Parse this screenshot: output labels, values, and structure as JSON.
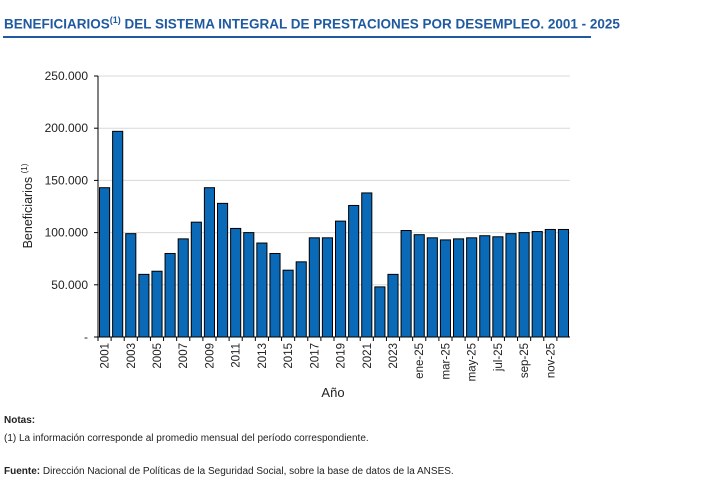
{
  "title": {
    "text": "BENEFICIARIOS",
    "sup": "(1)",
    "rest": " DEL SISTEMA INTEGRAL DE PRESTACIONES POR DESEMPLEO. 2001 - 2025"
  },
  "chart_data": {
    "type": "bar",
    "title": "BENEFICIARIOS(1) DEL SISTEMA INTEGRAL DE PRESTACIONES POR DESEMPLEO. 2001 - 2025",
    "xlabel": "Año",
    "ylabel": "Beneficiarios",
    "ylabel_sup": "(1)",
    "ylim": [
      0,
      250000
    ],
    "yticks": [
      0,
      50000,
      100000,
      150000,
      200000,
      250000
    ],
    "ytick_labels": [
      "-",
      "50.000",
      "100.000",
      "150.000",
      "200.000",
      "250.000"
    ],
    "grid": true,
    "legend": "none",
    "bar_color": "#0a6ab8",
    "categories": [
      "2001",
      "2002",
      "2003",
      "2004",
      "2005",
      "2006",
      "2007",
      "2008",
      "2009",
      "2010",
      "2011",
      "2012",
      "2013",
      "2014",
      "2015",
      "2016",
      "2017",
      "2018",
      "2019",
      "2020",
      "2021",
      "2022",
      "2023",
      "2024",
      "ene-25",
      "feb-25",
      "mar-25",
      "abr-25",
      "may-25",
      "jun-25",
      "jul-25",
      "ago-25",
      "sep-25",
      "oct-25",
      "nov-25",
      "dic-25"
    ],
    "shown_tick_labels": [
      "2001",
      "2003",
      "2005",
      "2007",
      "2009",
      "2011",
      "2013",
      "2015",
      "2017",
      "2019",
      "2021",
      "2023",
      "ene-25",
      "mar-25",
      "may-25",
      "jul-25",
      "sep-25",
      "nov-25"
    ],
    "values": [
      143000,
      197000,
      99000,
      60000,
      63000,
      80000,
      94000,
      110000,
      143000,
      128000,
      104000,
      100000,
      90000,
      80000,
      64000,
      72000,
      95000,
      95000,
      111000,
      126000,
      138000,
      48000,
      60000,
      102000,
      98000,
      95000,
      93000,
      94000,
      95000,
      97000,
      96000,
      99000,
      100000,
      101000,
      103000,
      103000
    ]
  },
  "notes": {
    "heading": "Notas:",
    "note1": "(1) La información corresponde al promedio mensual del período correspondiente.",
    "source_label": "Fuente:",
    "source_text": " Dirección Nacional de Políticas de la Seguridad Social, sobre la base de datos de la ANSES."
  }
}
